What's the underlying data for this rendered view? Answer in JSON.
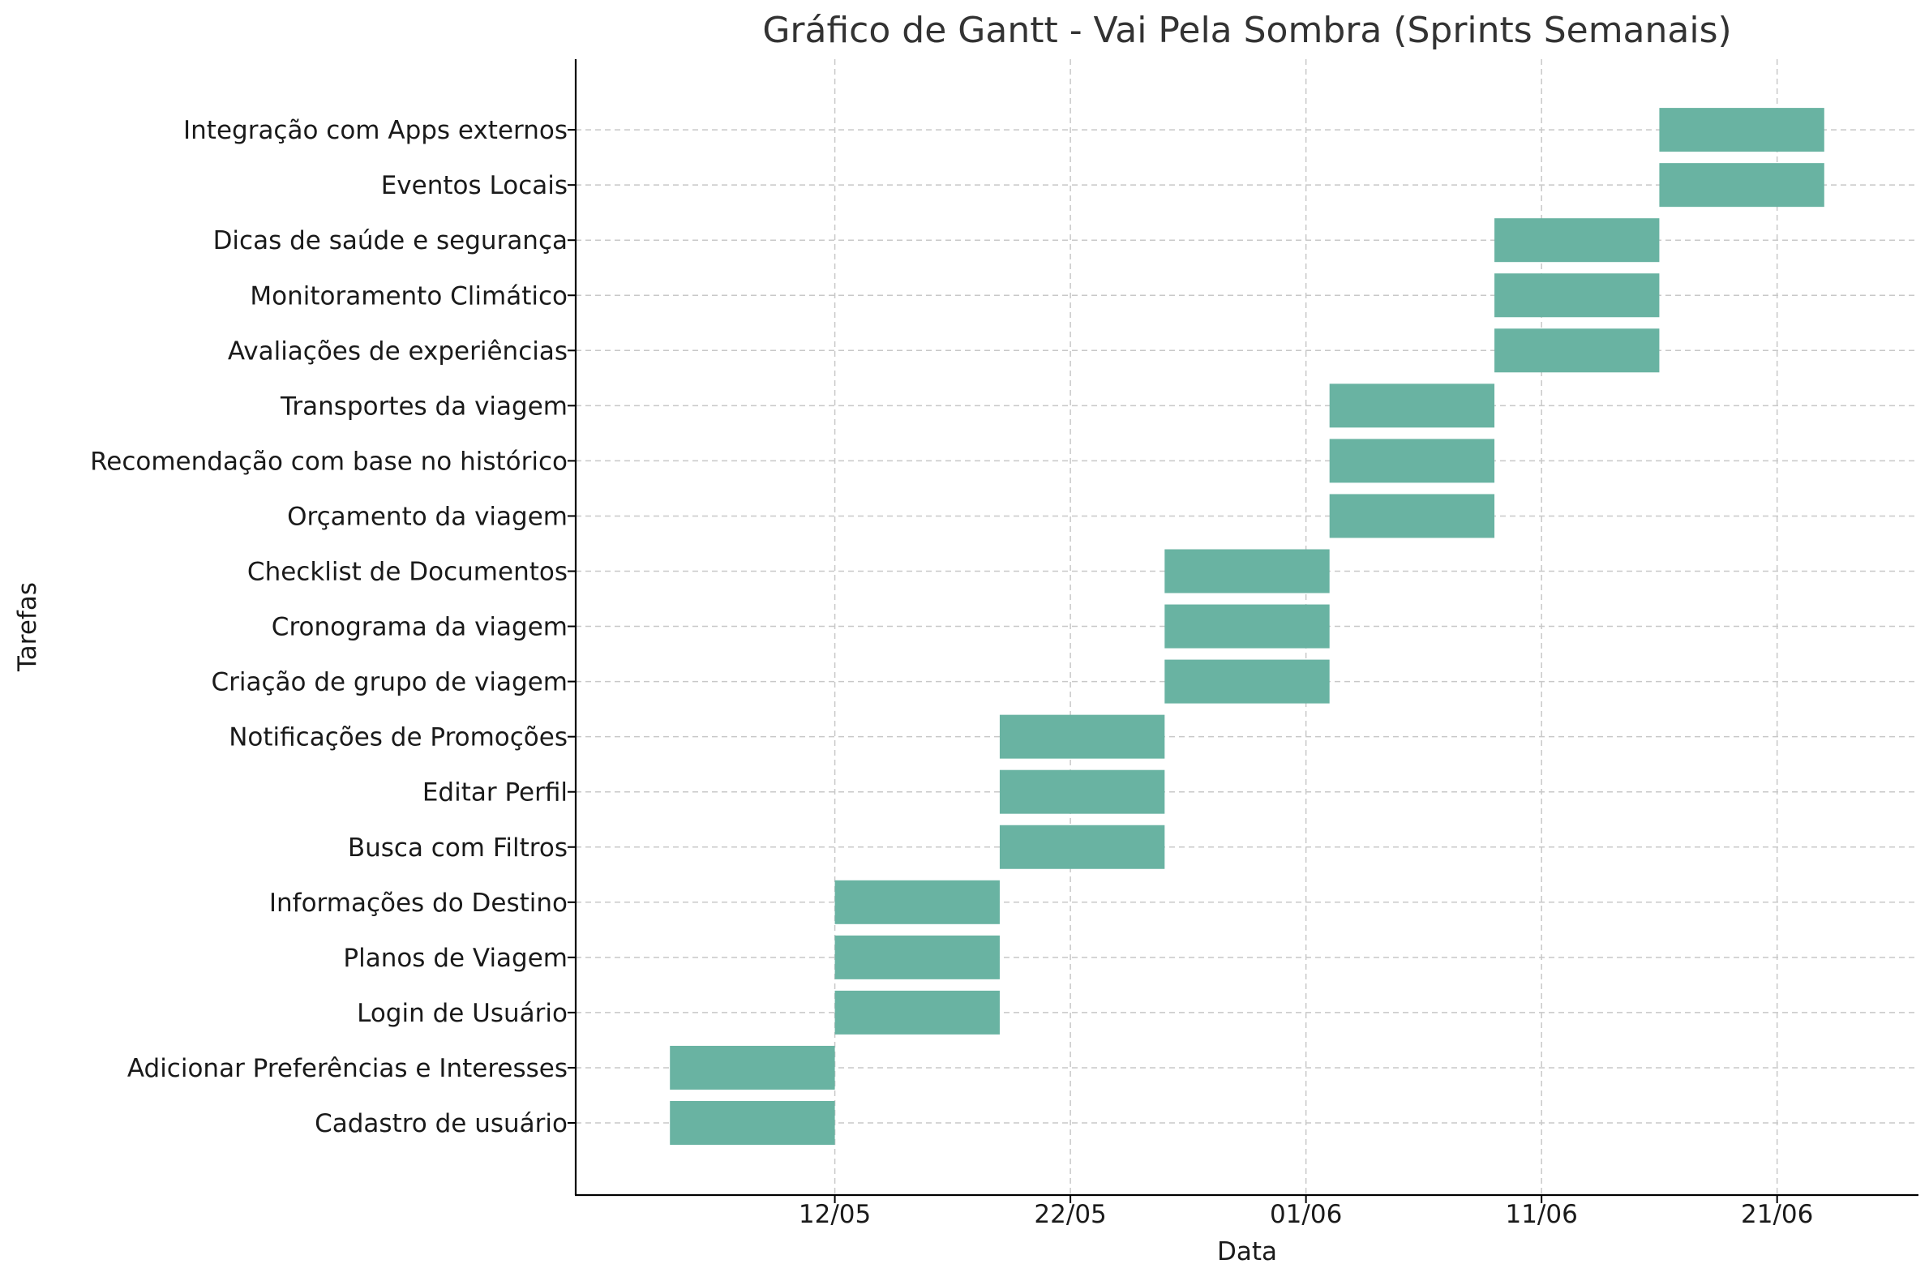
{
  "chart_data": {
    "type": "gantt",
    "title": "Gráfico de Gantt - Vai Pela Sombra (Sprints Semanais)",
    "xlabel": "Data",
    "ylabel": "Tarefas",
    "x_range": [
      "2024-05-01",
      "2024-06-27"
    ],
    "x_ticks": [
      {
        "date": "2024-05-12",
        "label": "12/05"
      },
      {
        "date": "2024-05-22",
        "label": "22/05"
      },
      {
        "date": "2024-06-01",
        "label": "01/06"
      },
      {
        "date": "2024-06-11",
        "label": "11/06"
      },
      {
        "date": "2024-06-21",
        "label": "21/06"
      }
    ],
    "bar_color": "#69b3a2",
    "grid": true,
    "tasks": [
      {
        "name": "Cadastro de usuário",
        "start": "2024-05-05",
        "end": "2024-05-12"
      },
      {
        "name": "Adicionar Preferências e Interesses",
        "start": "2024-05-05",
        "end": "2024-05-12"
      },
      {
        "name": "Login de Usuário",
        "start": "2024-05-12",
        "end": "2024-05-19"
      },
      {
        "name": "Planos de Viagem",
        "start": "2024-05-12",
        "end": "2024-05-19"
      },
      {
        "name": "Informações do Destino",
        "start": "2024-05-12",
        "end": "2024-05-19"
      },
      {
        "name": "Busca com Filtros",
        "start": "2024-05-19",
        "end": "2024-05-26"
      },
      {
        "name": "Editar Perfil",
        "start": "2024-05-19",
        "end": "2024-05-26"
      },
      {
        "name": "Notificações de Promoções",
        "start": "2024-05-19",
        "end": "2024-05-26"
      },
      {
        "name": "Criação de grupo de viagem",
        "start": "2024-05-26",
        "end": "2024-06-02"
      },
      {
        "name": "Cronograma da viagem",
        "start": "2024-05-26",
        "end": "2024-06-02"
      },
      {
        "name": "Checklist de Documentos",
        "start": "2024-05-26",
        "end": "2024-06-02"
      },
      {
        "name": "Orçamento da viagem",
        "start": "2024-06-02",
        "end": "2024-06-09"
      },
      {
        "name": "Recomendação com base no histórico",
        "start": "2024-06-02",
        "end": "2024-06-09"
      },
      {
        "name": "Transportes da viagem",
        "start": "2024-06-02",
        "end": "2024-06-09"
      },
      {
        "name": "Avaliações de experiências",
        "start": "2024-06-09",
        "end": "2024-06-16"
      },
      {
        "name": "Monitoramento Climático",
        "start": "2024-06-09",
        "end": "2024-06-16"
      },
      {
        "name": "Dicas de saúde e segurança",
        "start": "2024-06-09",
        "end": "2024-06-16"
      },
      {
        "name": "Eventos Locais",
        "start": "2024-06-16",
        "end": "2024-06-23"
      },
      {
        "name": "Integração com Apps externos",
        "start": "2024-06-16",
        "end": "2024-06-23"
      }
    ]
  }
}
